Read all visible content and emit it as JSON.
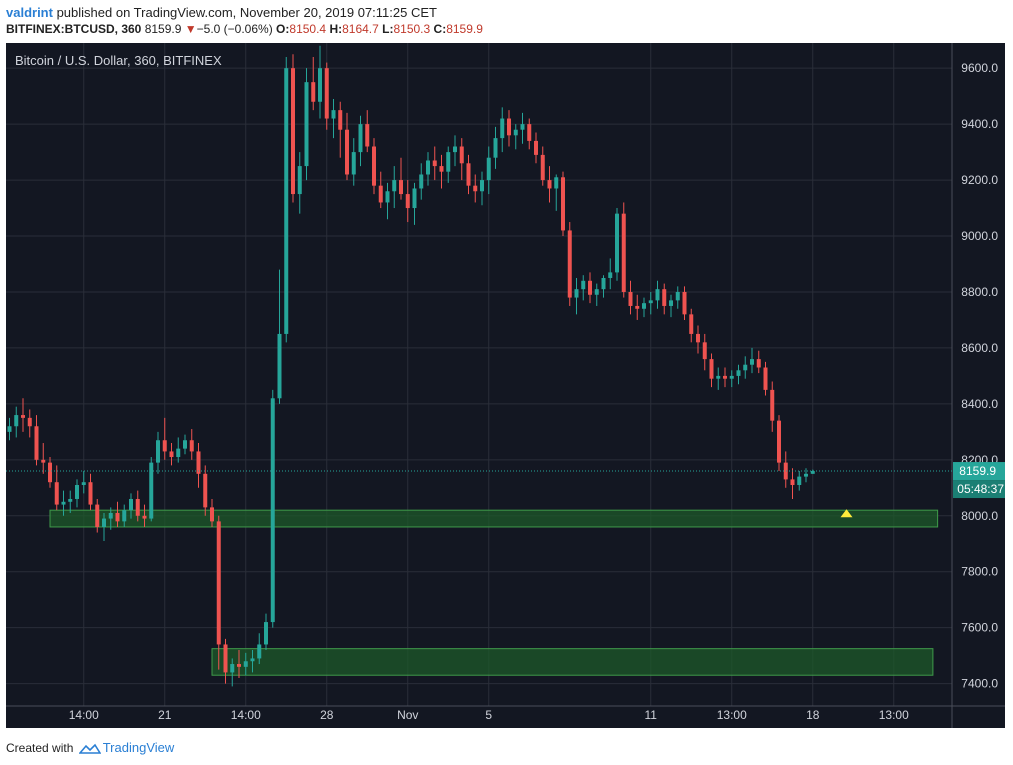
{
  "header": {
    "user": "valdrint",
    "published_text": " published on TradingView.com, November 20, 2019 07:11:25 CET",
    "symbol": "BITFINEX:BTCUSD, 360",
    "last": "8159.9",
    "change_arrow": "▼",
    "change": "−5.0 (−0.06%)",
    "o_label": "O:",
    "o_value": "8150.4",
    "h_label": "H:",
    "h_value": "8164.7",
    "l_label": "L:",
    "l_value": "8150.3",
    "c_label": "C:",
    "c_value": "8159.9"
  },
  "footer": {
    "created_with": "Created with",
    "brand": "TradingView"
  },
  "colors": {
    "background": "#131722",
    "up": "#26a69a",
    "down": "#ef5350",
    "grid": "#2a2e39",
    "support_zone": "#1e5a2a",
    "price_label": "#26a69a"
  },
  "chart_data": {
    "type": "candlestick",
    "title": "Bitcoin / U.S. Dollar, 360, BITFINEX",
    "ylim": [
      7320,
      9690
    ],
    "y_ticks": [
      9600,
      9400,
      9200,
      9000,
      8800,
      8600,
      8400,
      8200,
      8000,
      7800,
      7600,
      7400
    ],
    "y_tick_labels": [
      "9600.0",
      "9400.0",
      "9200.0",
      "9000.0",
      "8800.0",
      "8600.0",
      "8400.0",
      "8200.0",
      "8000.0",
      "7800.0",
      "7600.0",
      "7400.0"
    ],
    "x_tick_labels": [
      {
        "label": "14:00",
        "bar": 11
      },
      {
        "label": "21",
        "bar": 23
      },
      {
        "label": "14:00",
        "bar": 35
      },
      {
        "label": "28",
        "bar": 47
      },
      {
        "label": "Nov",
        "bar": 59
      },
      {
        "label": "5",
        "bar": 71
      },
      {
        "label": "11",
        "bar": 95
      },
      {
        "label": "13:00",
        "bar": 107
      },
      {
        "label": "18",
        "bar": 119
      },
      {
        "label": "13:00",
        "bar": 131
      }
    ],
    "current_price": 8159.9,
    "current_price_label": "8159.9",
    "countdown_label": "05:48:37",
    "support_zones": [
      {
        "low": 7960,
        "high": 8020,
        "from_bar": 6,
        "to_bar": 137.5
      },
      {
        "low": 7430,
        "high": 7525,
        "from_bar": 30,
        "to_bar": 136.8
      }
    ],
    "marker": {
      "bar": 124,
      "price": 8002
    },
    "grid": true,
    "candles": [
      [
        8300,
        8350,
        8270,
        8320
      ],
      [
        8320,
        8390,
        8280,
        8360
      ],
      [
        8360,
        8420,
        8300,
        8350
      ],
      [
        8350,
        8380,
        8280,
        8320
      ],
      [
        8320,
        8360,
        8180,
        8200
      ],
      [
        8200,
        8260,
        8150,
        8190
      ],
      [
        8190,
        8210,
        8100,
        8120
      ],
      [
        8120,
        8180,
        8020,
        8040
      ],
      [
        8040,
        8090,
        8000,
        8050
      ],
      [
        8050,
        8090,
        8010,
        8060
      ],
      [
        8060,
        8130,
        8030,
        8110
      ],
      [
        8110,
        8160,
        8080,
        8120
      ],
      [
        8120,
        8150,
        8020,
        8040
      ],
      [
        8040,
        8060,
        7940,
        7960
      ],
      [
        7960,
        8010,
        7910,
        7990
      ],
      [
        7990,
        8030,
        7950,
        8010
      ],
      [
        8010,
        8050,
        7960,
        7980
      ],
      [
        7980,
        8040,
        7960,
        8020
      ],
      [
        8020,
        8080,
        7990,
        8060
      ],
      [
        8060,
        8090,
        7980,
        8000
      ],
      [
        8000,
        8040,
        7960,
        7990
      ],
      [
        7990,
        8210,
        7980,
        8190
      ],
      [
        8190,
        8300,
        8150,
        8270
      ],
      [
        8270,
        8350,
        8200,
        8230
      ],
      [
        8230,
        8260,
        8180,
        8210
      ],
      [
        8210,
        8280,
        8190,
        8240
      ],
      [
        8240,
        8290,
        8220,
        8270
      ],
      [
        8270,
        8310,
        8200,
        8230
      ],
      [
        8230,
        8260,
        8100,
        8150
      ],
      [
        8150,
        8180,
        8000,
        8030
      ],
      [
        8030,
        8060,
        7960,
        7980
      ],
      [
        7980,
        8000,
        7450,
        7540
      ],
      [
        7540,
        7560,
        7400,
        7440
      ],
      [
        7440,
        7490,
        7390,
        7470
      ],
      [
        7470,
        7520,
        7420,
        7460
      ],
      [
        7460,
        7510,
        7430,
        7480
      ],
      [
        7480,
        7520,
        7440,
        7490
      ],
      [
        7490,
        7580,
        7470,
        7540
      ],
      [
        7540,
        7650,
        7520,
        7620
      ],
      [
        7620,
        8450,
        7600,
        8420
      ],
      [
        8420,
        8880,
        8400,
        8650
      ],
      [
        8650,
        9640,
        8620,
        9600
      ],
      [
        9600,
        9650,
        9120,
        9150
      ],
      [
        9150,
        9300,
        9080,
        9250
      ],
      [
        9250,
        9600,
        9200,
        9550
      ],
      [
        9550,
        9640,
        9450,
        9480
      ],
      [
        9480,
        9680,
        9420,
        9600
      ],
      [
        9600,
        9620,
        9380,
        9420
      ],
      [
        9420,
        9490,
        9350,
        9450
      ],
      [
        9450,
        9480,
        9280,
        9380
      ],
      [
        9380,
        9440,
        9200,
        9220
      ],
      [
        9220,
        9350,
        9180,
        9300
      ],
      [
        9300,
        9430,
        9250,
        9400
      ],
      [
        9400,
        9450,
        9300,
        9320
      ],
      [
        9320,
        9350,
        9150,
        9180
      ],
      [
        9180,
        9230,
        9100,
        9120
      ],
      [
        9120,
        9190,
        9060,
        9160
      ],
      [
        9160,
        9250,
        9100,
        9200
      ],
      [
        9200,
        9280,
        9130,
        9150
      ],
      [
        9150,
        9200,
        9050,
        9100
      ],
      [
        9100,
        9190,
        9040,
        9170
      ],
      [
        9170,
        9260,
        9130,
        9220
      ],
      [
        9220,
        9300,
        9180,
        9270
      ],
      [
        9270,
        9320,
        9200,
        9250
      ],
      [
        9250,
        9290,
        9170,
        9230
      ],
      [
        9230,
        9320,
        9190,
        9300
      ],
      [
        9300,
        9360,
        9250,
        9320
      ],
      [
        9320,
        9350,
        9200,
        9260
      ],
      [
        9260,
        9290,
        9150,
        9180
      ],
      [
        9180,
        9220,
        9120,
        9160
      ],
      [
        9160,
        9230,
        9110,
        9200
      ],
      [
        9200,
        9320,
        9150,
        9280
      ],
      [
        9280,
        9390,
        9240,
        9350
      ],
      [
        9350,
        9460,
        9300,
        9420
      ],
      [
        9420,
        9450,
        9320,
        9360
      ],
      [
        9360,
        9400,
        9310,
        9380
      ],
      [
        9380,
        9440,
        9330,
        9400
      ],
      [
        9400,
        9420,
        9310,
        9340
      ],
      [
        9340,
        9370,
        9260,
        9290
      ],
      [
        9290,
        9320,
        9180,
        9200
      ],
      [
        9200,
        9250,
        9120,
        9170
      ],
      [
        9170,
        9220,
        9090,
        9210
      ],
      [
        9210,
        9230,
        9000,
        9020
      ],
      [
        9020,
        9050,
        8750,
        8780
      ],
      [
        8780,
        8850,
        8720,
        8810
      ],
      [
        8810,
        8860,
        8770,
        8840
      ],
      [
        8840,
        8870,
        8760,
        8790
      ],
      [
        8790,
        8830,
        8750,
        8810
      ],
      [
        8810,
        8860,
        8780,
        8850
      ],
      [
        8850,
        8920,
        8810,
        8870
      ],
      [
        8870,
        9100,
        8840,
        9080
      ],
      [
        9080,
        9120,
        8780,
        8800
      ],
      [
        8800,
        8840,
        8720,
        8750
      ],
      [
        8750,
        8790,
        8700,
        8740
      ],
      [
        8740,
        8780,
        8710,
        8760
      ],
      [
        8760,
        8800,
        8720,
        8770
      ],
      [
        8770,
        8840,
        8740,
        8810
      ],
      [
        8810,
        8830,
        8720,
        8750
      ],
      [
        8750,
        8790,
        8710,
        8770
      ],
      [
        8770,
        8820,
        8740,
        8800
      ],
      [
        8800,
        8820,
        8700,
        8720
      ],
      [
        8720,
        8740,
        8620,
        8650
      ],
      [
        8650,
        8680,
        8580,
        8620
      ],
      [
        8620,
        8650,
        8520,
        8560
      ],
      [
        8560,
        8580,
        8460,
        8490
      ],
      [
        8490,
        8530,
        8450,
        8500
      ],
      [
        8500,
        8530,
        8460,
        8490
      ],
      [
        8490,
        8520,
        8460,
        8500
      ],
      [
        8500,
        8540,
        8470,
        8520
      ],
      [
        8520,
        8570,
        8490,
        8540
      ],
      [
        8540,
        8600,
        8510,
        8560
      ],
      [
        8560,
        8590,
        8510,
        8530
      ],
      [
        8530,
        8550,
        8430,
        8450
      ],
      [
        8450,
        8480,
        8300,
        8340
      ],
      [
        8340,
        8360,
        8160,
        8190
      ],
      [
        8190,
        8230,
        8100,
        8130
      ],
      [
        8130,
        8170,
        8060,
        8110
      ],
      [
        8110,
        8160,
        8090,
        8140
      ],
      [
        8140,
        8170,
        8120,
        8150
      ],
      [
        8150,
        8165,
        8150,
        8160
      ]
    ]
  }
}
